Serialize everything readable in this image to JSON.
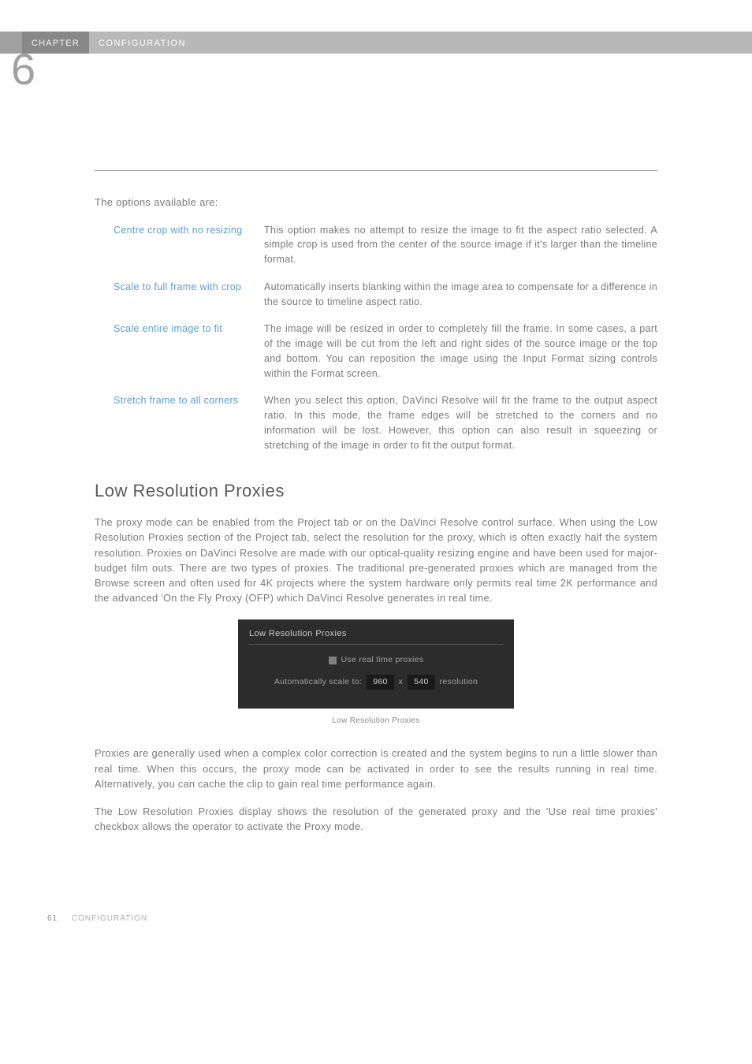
{
  "header": {
    "chapter_label": "CHAPTER",
    "title": "CONFIGURATION",
    "chapter_number": "6"
  },
  "intro": "The options available are:",
  "options": [
    {
      "label": "Centre crop with no resizing",
      "desc": "This option makes no attempt to resize the image to fit the aspect ratio selected. A simple crop is used from the center of the source image if it's larger than the timeline format."
    },
    {
      "label": "Scale to full frame with crop",
      "desc": "Automatically inserts blanking within the image area to compensate for a difference in the source to timeline aspect ratio."
    },
    {
      "label": "Scale entire image to fit",
      "desc": "The image will be resized in order to completely fill the frame. In some cases, a part of the image will be cut from the left and right sides of the source image or the top and bottom. You can reposition the image using the Input Format sizing controls within the Format screen."
    },
    {
      "label": "Stretch frame to all corners",
      "desc": "When you select this option, DaVinci Resolve will fit the frame to the output aspect ratio. In this mode, the frame edges will be stretched to the corners and no information will be lost. However, this option can also result in squeezing or stretching of the image in order to fit the output format."
    }
  ],
  "section": {
    "heading": "Low Resolution Proxies",
    "para1": "The proxy mode can be enabled from the Project tab or on the DaVinci Resolve control surface. When using the Low Resolution Proxies section of the Project tab, select the resolution for the proxy, which is often exactly half the system resolution. Proxies on DaVinci Resolve are made with our optical-quality resizing engine and have been used for major-budget film outs. There are two types of proxies. The traditional pre-generated proxies which are managed from the Browse screen and often used for 4K projects where the system hardware only permits real time 2K performance and the advanced 'On the Fly Proxy (OFP) which DaVinci Resolve generates in real time.",
    "para2": "Proxies are generally used when a complex color correction is created and the system begins to run a little slower than real time. When this occurs, the proxy mode can be activated in order to see the results running in real time. Alternatively, you can cache the clip to gain real time performance again.",
    "para3": "The Low Resolution Proxies display shows the resolution of the generated proxy and the 'Use real time proxies' checkbox allows the operator to activate the Proxy mode."
  },
  "panel": {
    "title": "Low Resolution Proxies",
    "checkbox_label": "Use real time proxies",
    "scale_label": "Automatically scale to:",
    "width": "960",
    "x_label": "x",
    "height": "540",
    "resolution_label": "resolution"
  },
  "caption": "Low Resolution Proxies",
  "footer": {
    "page_num": "61",
    "title": "CONFIGURATION"
  }
}
